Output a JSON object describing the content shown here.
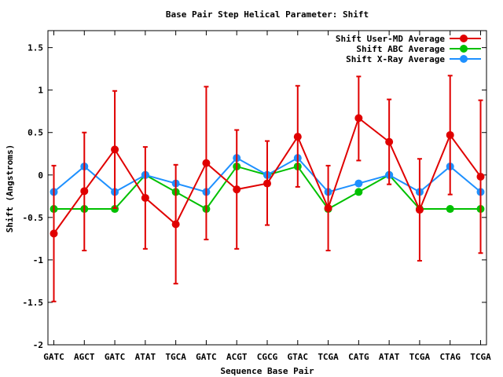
{
  "chart_data": {
    "type": "line",
    "title": "Base Pair Step Helical Parameter: Shift",
    "xlabel": "Sequence Base Pair",
    "ylabel": "Shift (Angstroms)",
    "ylim": [
      -2,
      1.7
    ],
    "yticks": [
      "-2",
      "-1.5",
      "-1",
      "-0.5",
      "0",
      "0.5",
      "1",
      "1.5"
    ],
    "yticks_values": [
      -2,
      -1.5,
      -1,
      -0.5,
      0,
      0.5,
      1,
      1.5
    ],
    "categories": [
      "GATC",
      "AGCT",
      "GATC",
      "ATAT",
      "TGCA",
      "GATC",
      "ACGT",
      "CGCG",
      "GTAC",
      "TCGA",
      "CATG",
      "ATAT",
      "TCGA",
      "CTAG",
      "TCGA"
    ],
    "legend_position": "top-right",
    "grid": false,
    "series": [
      {
        "name": "Shift User-MD Average",
        "color": "#e00000",
        "values": [
          -0.69,
          -0.19,
          0.3,
          -0.27,
          -0.58,
          0.14,
          -0.17,
          -0.1,
          0.45,
          -0.39,
          0.67,
          0.39,
          -0.41,
          0.47,
          -0.02
        ],
        "error_low": [
          -1.49,
          -0.89,
          -0.39,
          -0.87,
          -1.28,
          -0.76,
          -0.87,
          -0.59,
          -0.14,
          -0.89,
          0.17,
          -0.11,
          -1.01,
          -0.23,
          -0.92
        ],
        "error_high": [
          0.11,
          0.5,
          0.99,
          0.33,
          0.12,
          1.04,
          0.53,
          0.4,
          1.05,
          0.11,
          1.16,
          0.89,
          0.19,
          1.17,
          0.88
        ]
      },
      {
        "name": "Shift ABC Average",
        "color": "#00c000",
        "values": [
          -0.4,
          -0.4,
          -0.4,
          0.0,
          -0.2,
          -0.4,
          0.1,
          0.0,
          0.1,
          -0.4,
          -0.2,
          0.0,
          -0.4,
          -0.4,
          -0.4
        ]
      },
      {
        "name": "Shift X-Ray Average",
        "color": "#1e90ff",
        "values": [
          -0.2,
          0.1,
          -0.2,
          0.0,
          -0.1,
          -0.2,
          0.2,
          0.0,
          0.2,
          -0.2,
          -0.1,
          0.0,
          -0.2,
          0.1,
          -0.2
        ]
      }
    ]
  }
}
